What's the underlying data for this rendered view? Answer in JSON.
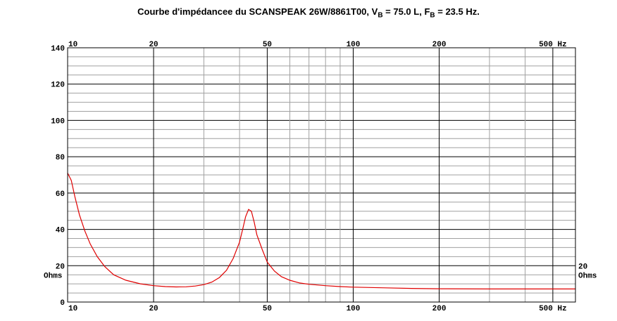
{
  "chart_data": {
    "type": "line",
    "title": {
      "prefix": "Courbe d'impédancee du SCANSPEAK 26W/8861T00, V",
      "sub1": "B",
      "mid": " = 75.0 L, F",
      "sub2": "B",
      "suffix": " = 23.5 Hz."
    },
    "x_scale": "log",
    "xlim": [
      10,
      600
    ],
    "ylim": [
      0,
      140
    ],
    "grid": true,
    "x_tick_labels": [
      {
        "value": 10,
        "label": "10"
      },
      {
        "value": 20,
        "label": "20"
      },
      {
        "value": 50,
        "label": "50"
      },
      {
        "value": 100,
        "label": "100"
      },
      {
        "value": 200,
        "label": "200"
      },
      {
        "value": 500,
        "label": "500 Hz"
      }
    ],
    "y_tick_labels": [
      {
        "value": 0,
        "label": "0"
      },
      {
        "value": 20,
        "label": "20"
      },
      {
        "value": 40,
        "label": "40"
      },
      {
        "value": 60,
        "label": "60"
      },
      {
        "value": 80,
        "label": "80"
      },
      {
        "value": 100,
        "label": "100"
      },
      {
        "value": 120,
        "label": "120"
      },
      {
        "value": 140,
        "label": "140"
      }
    ],
    "right_y_label": "20",
    "unit_label": "Ohms",
    "series": [
      {
        "color": "#e00000",
        "points": [
          [
            10,
            71
          ],
          [
            10.3,
            67
          ],
          [
            10.6,
            58
          ],
          [
            11,
            48
          ],
          [
            11.5,
            39
          ],
          [
            12,
            32
          ],
          [
            12.7,
            25
          ],
          [
            13.5,
            19.5
          ],
          [
            14.5,
            15
          ],
          [
            16,
            12
          ],
          [
            18,
            10
          ],
          [
            20,
            9
          ],
          [
            22,
            8.5
          ],
          [
            24,
            8.3
          ],
          [
            26,
            8.4
          ],
          [
            28,
            8.8
          ],
          [
            30,
            9.6
          ],
          [
            32,
            11
          ],
          [
            34,
            13.5
          ],
          [
            36,
            17.5
          ],
          [
            38,
            24
          ],
          [
            40,
            33
          ],
          [
            41,
            40
          ],
          [
            42,
            47
          ],
          [
            43,
            51
          ],
          [
            44,
            50
          ],
          [
            45,
            44
          ],
          [
            46,
            37
          ],
          [
            48,
            29
          ],
          [
            50,
            22
          ],
          [
            53,
            17
          ],
          [
            56,
            14
          ],
          [
            60,
            12
          ],
          [
            65,
            10.5
          ],
          [
            70,
            9.8
          ],
          [
            80,
            9
          ],
          [
            90,
            8.5
          ],
          [
            100,
            8.2
          ],
          [
            130,
            7.8
          ],
          [
            160,
            7.5
          ],
          [
            200,
            7.3
          ],
          [
            300,
            7.2
          ],
          [
            400,
            7.2
          ],
          [
            500,
            7.2
          ],
          [
            600,
            7.2
          ]
        ]
      }
    ]
  }
}
